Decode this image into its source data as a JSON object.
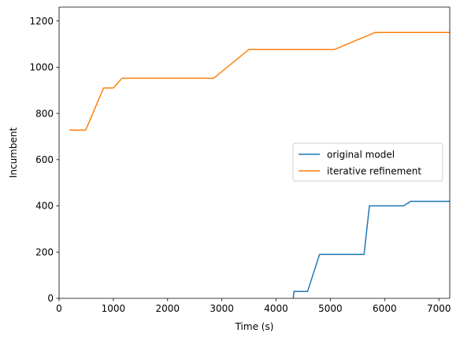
{
  "chart_data": {
    "type": "line",
    "title": "",
    "xlabel": "Time (s)",
    "ylabel": "Incumbent",
    "xlim": [
      0,
      7200
    ],
    "ylim": [
      0,
      1260
    ],
    "xticks": [
      0,
      1000,
      2000,
      3000,
      4000,
      5000,
      6000,
      7000
    ],
    "yticks": [
      0,
      200,
      400,
      600,
      800,
      1000,
      1200
    ],
    "grid": false,
    "legend": "center-right",
    "series": [
      {
        "name": "original model",
        "color": "#1f77b4",
        "points": [
          [
            4300,
            -30
          ],
          [
            4330,
            30
          ],
          [
            4580,
            30
          ],
          [
            4800,
            190
          ],
          [
            5620,
            190
          ],
          [
            5720,
            400
          ],
          [
            6350,
            400
          ],
          [
            6480,
            420
          ],
          [
            7200,
            420
          ]
        ]
      },
      {
        "name": "iterative refinement",
        "color": "#ff7f0e",
        "points": [
          [
            200,
            728
          ],
          [
            490,
            728
          ],
          [
            820,
            910
          ],
          [
            1000,
            910
          ],
          [
            1160,
            952
          ],
          [
            2850,
            952
          ],
          [
            3500,
            1077
          ],
          [
            5080,
            1077
          ],
          [
            5820,
            1150
          ],
          [
            7200,
            1150
          ]
        ]
      }
    ]
  }
}
